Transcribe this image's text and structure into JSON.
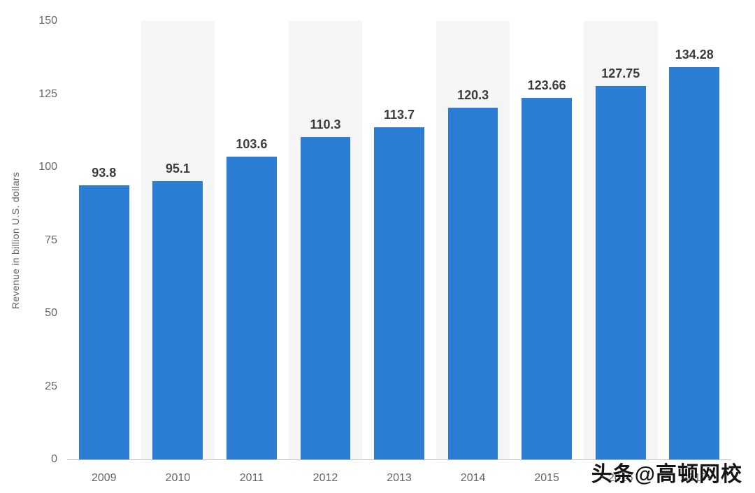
{
  "chart_data": {
    "type": "bar",
    "title": "",
    "categories": [
      "2009",
      "2010",
      "2011",
      "2012",
      "2013",
      "2014",
      "2015",
      "2016",
      "2017"
    ],
    "values": [
      93.8,
      95.1,
      103.6,
      110.3,
      113.7,
      120.3,
      123.66,
      127.75,
      134.28
    ],
    "value_labels": [
      "93.8",
      "95.1",
      "103.6",
      "110.3",
      "113.7",
      "120.3",
      "123.66",
      "127.75",
      "134.28"
    ],
    "xlabel": "",
    "ylabel": "Revenue in billion U.S. dollars",
    "ylim": [
      0,
      150
    ],
    "yticks": [
      0,
      25,
      50,
      75,
      100,
      125,
      150
    ],
    "grid": false,
    "legend": "none",
    "bar_color": "#2b7cd3",
    "stripe_color": "#f5f5f5",
    "axis_line_color": "#bfbfbf",
    "tick_label_color": "#666666",
    "value_label_color": "#3c3c3c"
  },
  "watermark": {
    "text": "头条@高顿网校"
  }
}
